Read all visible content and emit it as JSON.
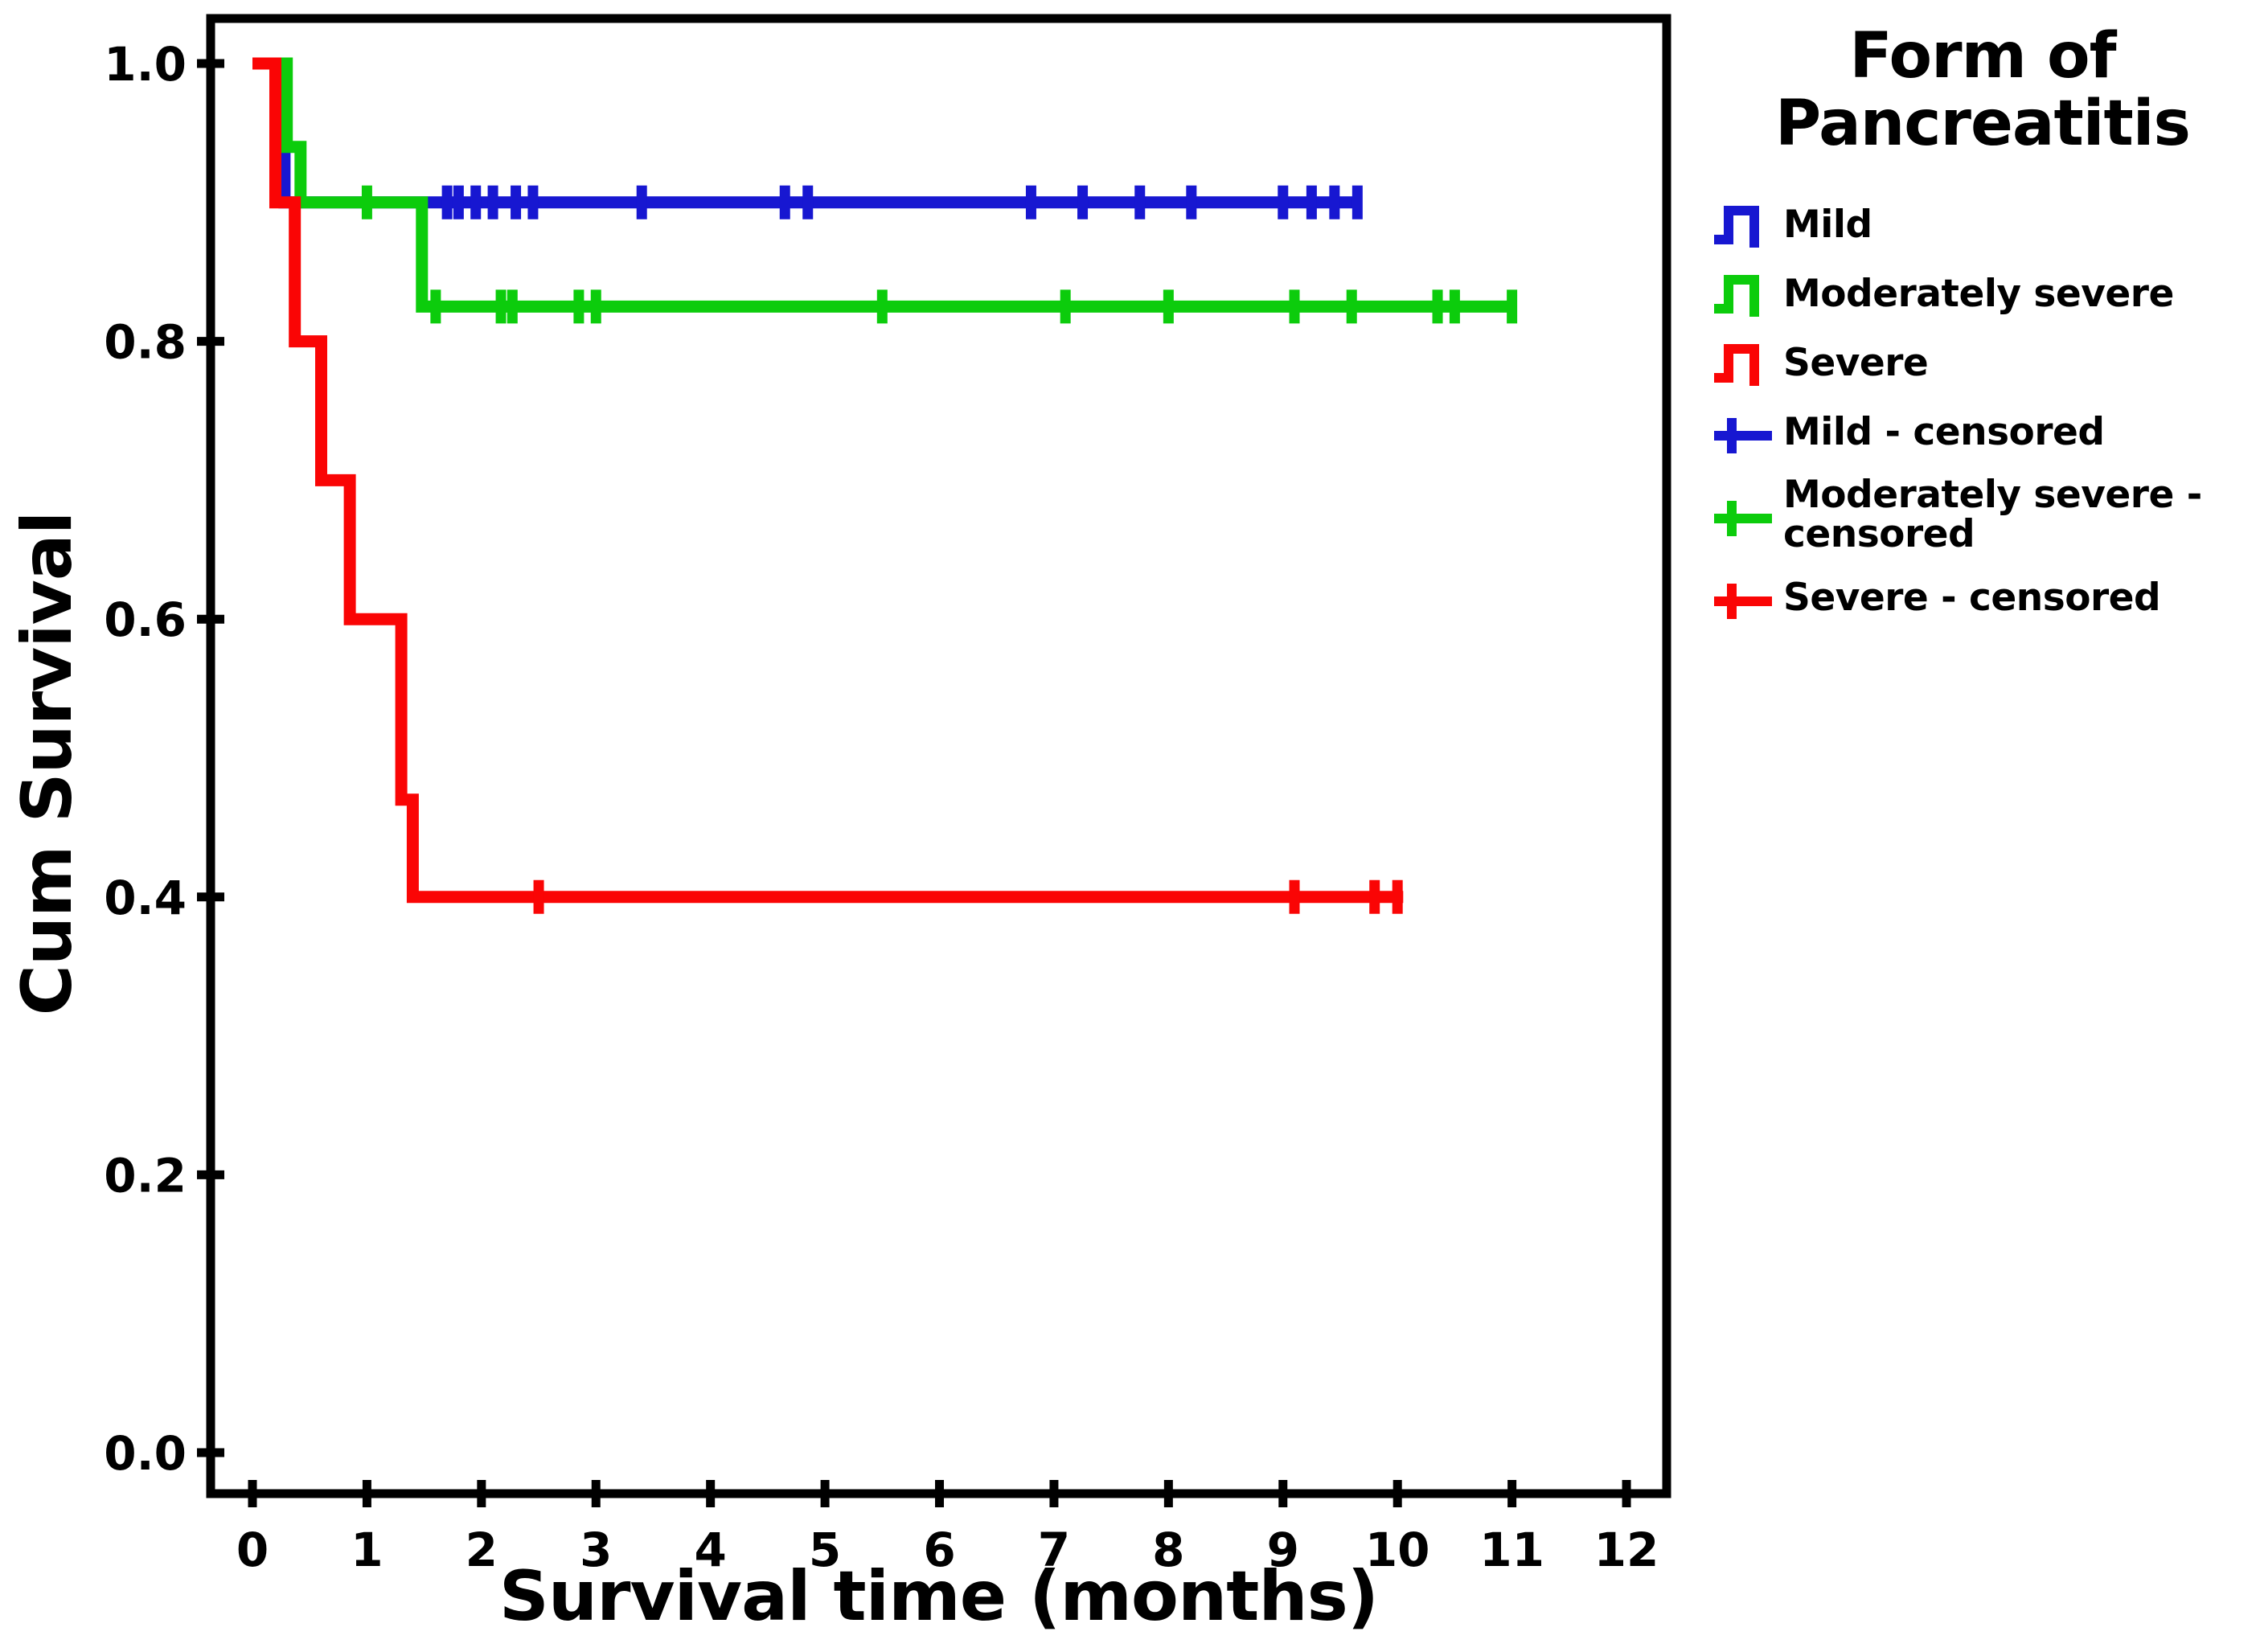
{
  "chart_data": {
    "type": "line",
    "subtype": "kaplan-meier-step-plot",
    "title": "",
    "xlabel": "Survival time (months)",
    "ylabel": "Cum Survival",
    "xlim": [
      0,
      12
    ],
    "ylim": [
      0.0,
      1.0
    ],
    "x_ticks": [
      0,
      1,
      2,
      3,
      4,
      5,
      6,
      7,
      8,
      9,
      10,
      11,
      12
    ],
    "y_ticks": [
      0.0,
      0.2,
      0.4,
      0.6,
      0.8,
      1.0
    ],
    "grid": false,
    "legend_position": "right",
    "legend_title": "Form of Pancreatitis",
    "series": [
      {
        "name": "Mild",
        "color": "#1717D1",
        "steps": [
          [
            0,
            1.0
          ],
          [
            0.28,
            1.0
          ],
          [
            0.28,
            0.9
          ],
          [
            9.65,
            0.9
          ]
        ],
        "censored": [
          [
            1.7,
            0.9
          ],
          [
            1.8,
            0.9
          ],
          [
            1.95,
            0.9
          ],
          [
            2.1,
            0.9
          ],
          [
            2.3,
            0.9
          ],
          [
            2.45,
            0.9
          ],
          [
            3.4,
            0.9
          ],
          [
            4.65,
            0.9
          ],
          [
            4.85,
            0.9
          ],
          [
            6.8,
            0.9
          ],
          [
            7.25,
            0.9
          ],
          [
            7.75,
            0.9
          ],
          [
            8.2,
            0.9
          ],
          [
            9.0,
            0.9
          ],
          [
            9.25,
            0.9
          ],
          [
            9.45,
            0.9
          ],
          [
            9.65,
            0.9
          ]
        ]
      },
      {
        "name": "Moderately severe",
        "color": "#0CCC0C",
        "steps": [
          [
            0,
            1.0
          ],
          [
            0.3,
            1.0
          ],
          [
            0.3,
            0.94
          ],
          [
            0.42,
            0.94
          ],
          [
            0.42,
            0.9
          ],
          [
            1.48,
            0.9
          ],
          [
            1.48,
            0.825
          ],
          [
            11.0,
            0.825
          ]
        ],
        "censored": [
          [
            1.0,
            0.9
          ],
          [
            1.6,
            0.825
          ],
          [
            2.17,
            0.825
          ],
          [
            2.27,
            0.825
          ],
          [
            2.85,
            0.825
          ],
          [
            3.0,
            0.825
          ],
          [
            5.5,
            0.825
          ],
          [
            7.1,
            0.825
          ],
          [
            8.0,
            0.825
          ],
          [
            9.1,
            0.825
          ],
          [
            9.6,
            0.825
          ],
          [
            10.35,
            0.825
          ],
          [
            10.5,
            0.825
          ],
          [
            11.0,
            0.825
          ]
        ]
      },
      {
        "name": "Severe",
        "color": "#FA0505",
        "steps": [
          [
            0,
            1.0
          ],
          [
            0.2,
            1.0
          ],
          [
            0.2,
            0.9
          ],
          [
            0.37,
            0.9
          ],
          [
            0.37,
            0.8
          ],
          [
            0.6,
            0.8
          ],
          [
            0.6,
            0.7
          ],
          [
            0.85,
            0.7
          ],
          [
            0.85,
            0.6
          ],
          [
            1.3,
            0.6
          ],
          [
            1.3,
            0.47
          ],
          [
            1.4,
            0.47
          ],
          [
            1.4,
            0.4
          ],
          [
            10.05,
            0.4
          ]
        ],
        "censored": [
          [
            2.5,
            0.4
          ],
          [
            9.1,
            0.4
          ],
          [
            9.8,
            0.4
          ],
          [
            10.0,
            0.4
          ]
        ]
      }
    ],
    "legend_entries": [
      {
        "label": "Mild",
        "color": "#1717D1",
        "symbol": "step"
      },
      {
        "label": "Moderately severe",
        "color": "#0CCC0C",
        "symbol": "step"
      },
      {
        "label": "Severe",
        "color": "#FA0505",
        "symbol": "step"
      },
      {
        "label": "Mild - censored",
        "color": "#1717D1",
        "symbol": "plus"
      },
      {
        "label": "Moderately severe - censored",
        "color": "#0CCC0C",
        "symbol": "plus"
      },
      {
        "label": "Severe - censored",
        "color": "#FA0505",
        "symbol": "plus"
      }
    ]
  }
}
